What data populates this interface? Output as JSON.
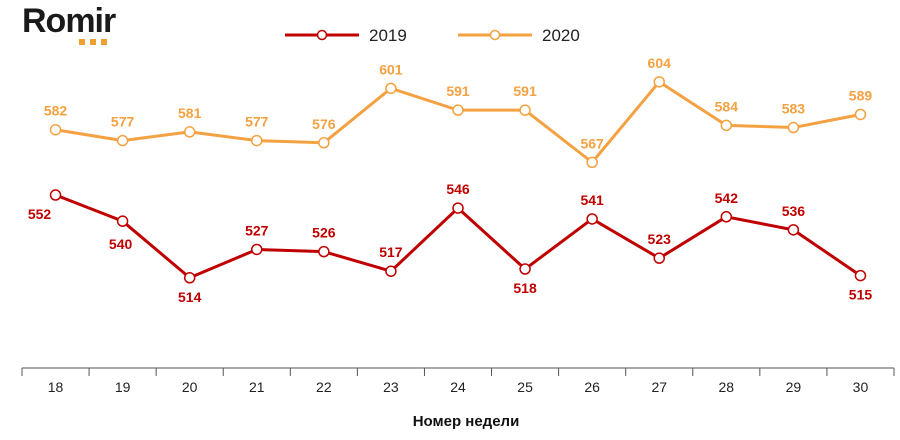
{
  "brand": {
    "logo_text": "Romir"
  },
  "chart_data": {
    "type": "line",
    "title": "",
    "xlabel": "Номер недели",
    "ylabel": "",
    "categories": [
      "18",
      "19",
      "20",
      "21",
      "22",
      "23",
      "24",
      "25",
      "26",
      "27",
      "28",
      "29",
      "30"
    ],
    "ylim": [
      490,
      620
    ],
    "grid": false,
    "legend_position": "top",
    "series": [
      {
        "name": "2019",
        "color": "#c00000",
        "values": [
          552,
          540,
          514,
          527,
          526,
          517,
          546,
          518,
          541,
          523,
          542,
          536,
          515
        ]
      },
      {
        "name": "2020",
        "color": "#f4a142",
        "values": [
          582,
          577,
          581,
          577,
          576,
          601,
          591,
          591,
          567,
          604,
          584,
          583,
          589
        ]
      }
    ]
  }
}
